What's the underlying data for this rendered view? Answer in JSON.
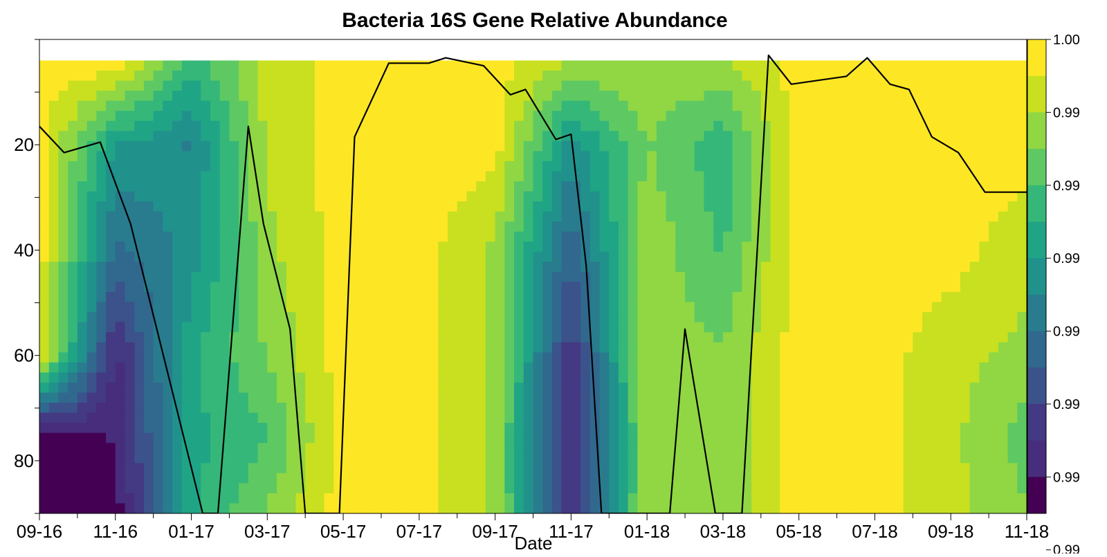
{
  "chart_data": {
    "type": "heatmap",
    "subtype": "filled-contour with overlaid line",
    "title": "Bacteria 16S Gene Relative Abundance",
    "xlabel": "Date",
    "ylabel": "",
    "x_tick_labels": [
      "09-16",
      "11-16",
      "01-17",
      "03-17",
      "05-17",
      "07-17",
      "09-17",
      "11-17",
      "01-18",
      "03-18",
      "05-18",
      "07-18",
      "09-18",
      "11-18"
    ],
    "y_ticks": [
      20,
      40,
      60,
      80
    ],
    "ylim": [
      90,
      0
    ],
    "y_inverted": true,
    "colorbar": {
      "labels": [
        "1.00",
        "0.99",
        "0.99",
        "0.99",
        "0.99",
        "0.99",
        "0.99",
        "0.99"
      ],
      "colors": [
        "#fde725",
        "#c8e020",
        "#90d743",
        "#5ec962",
        "#35b779",
        "#20a486",
        "#21918c",
        "#287c8e",
        "#31688e",
        "#3b528b",
        "#443983",
        "#472d7b",
        "#440154"
      ]
    },
    "depth_profiles": [
      {
        "date": "09-16",
        "values": [
          1.0,
          1.0,
          1.0,
          1.0,
          0.0,
          0.0
        ]
      },
      {
        "date": "11-16",
        "values": [
          1.0,
          0.55,
          0.35,
          0.1,
          0.05,
          0.0
        ]
      },
      {
        "date": "01-17",
        "values": [
          0.65,
          0.45,
          0.5,
          0.6,
          0.6,
          0.6
        ]
      },
      {
        "date": "03-17",
        "values": [
          0.9,
          0.9,
          0.85,
          0.8,
          0.7,
          0.8
        ]
      },
      {
        "date": "05-17",
        "values": [
          1.0,
          1.0,
          1.0,
          1.0,
          1.0,
          1.0
        ]
      },
      {
        "date": "07-17",
        "values": [
          1.0,
          1.0,
          1.0,
          1.0,
          1.0,
          1.0
        ]
      },
      {
        "date": "09-17",
        "values": [
          1.0,
          1.0,
          0.85,
          0.85,
          0.85,
          0.85
        ]
      },
      {
        "date": "11-17",
        "values": [
          0.85,
          0.5,
          0.3,
          0.15,
          0.08,
          0.1
        ]
      },
      {
        "date": "01-18",
        "values": [
          0.85,
          0.8,
          0.85,
          0.85,
          0.85,
          0.85
        ]
      },
      {
        "date": "03-18",
        "values": [
          0.85,
          0.65,
          0.7,
          0.8,
          0.8,
          0.8
        ]
      },
      {
        "date": "05-18",
        "values": [
          1.0,
          1.0,
          1.0,
          1.0,
          1.0,
          1.0
        ]
      },
      {
        "date": "07-18",
        "values": [
          1.0,
          1.0,
          1.0,
          1.0,
          1.0,
          1.0
        ]
      },
      {
        "date": "09-18",
        "values": [
          1.0,
          1.0,
          1.0,
          0.9,
          0.9,
          0.9
        ]
      },
      {
        "date": "11-18",
        "values": [
          1.0,
          1.0,
          0.9,
          0.85,
          0.75,
          0.8
        ]
      }
    ],
    "depth_levels": [
      5,
      20,
      40,
      60,
      75,
      90
    ],
    "line_series": {
      "x": [
        0,
        0.65,
        1.6,
        2.4,
        4.3,
        4.7,
        5.5,
        5.9,
        6.6,
        7.0,
        7.9,
        8.3,
        9.2,
        9.5,
        10.25,
        10.7,
        11.7,
        12.4,
        12.8,
        13.6,
        14.0,
        14.4,
        14.8,
        15.4,
        16.0,
        16.6,
        17.0,
        17.8,
        18.5,
        19.2,
        19.8,
        21.25,
        21.8,
        22.4,
        22.9,
        23.5,
        24.2,
        24.9,
        25.6,
        26.5,
        27.0
      ],
      "y": [
        16.5,
        21.5,
        19.5,
        35,
        90,
        90,
        16.5,
        35,
        55,
        90,
        90,
        18.5,
        4.5,
        4.5,
        4.5,
        3.5,
        5,
        10.5,
        9.5,
        19,
        18,
        43,
        90,
        90,
        90,
        90,
        55,
        90,
        90,
        3,
        8.5,
        7,
        3.5,
        8.5,
        9.5,
        18.5,
        21.5,
        29,
        29,
        29,
        29
      ]
    }
  }
}
